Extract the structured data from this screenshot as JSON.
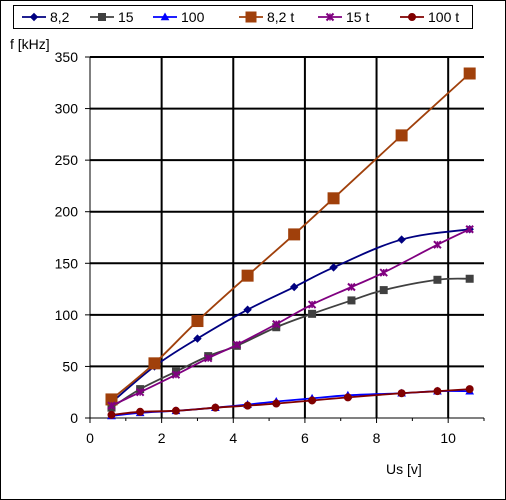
{
  "chart_data": {
    "type": "line",
    "title": "",
    "xlabel": "Us [v]",
    "ylabel": "f [kHz]",
    "xlim": [
      0,
      11
    ],
    "ylim": [
      0,
      350
    ],
    "x_ticks": [
      "0",
      "2",
      "4",
      "6",
      "8",
      "10"
    ],
    "y_ticks": [
      "0",
      "50",
      "100",
      "150",
      "200",
      "250",
      "300",
      "350"
    ],
    "grid": true,
    "legend_position": "top",
    "series": [
      {
        "name": "8,2",
        "color": "#000080",
        "marker": "diamond",
        "x": [
          0.6,
          1.8,
          3.0,
          4.4,
          5.7,
          6.8,
          8.7,
          10.6
        ],
        "y": [
          15,
          50,
          77,
          105,
          127,
          146,
          173,
          183
        ]
      },
      {
        "name": "15",
        "color": "#404040",
        "marker": "square",
        "x": [
          0.6,
          1.4,
          2.4,
          3.3,
          4.1,
          5.2,
          6.2,
          7.3,
          8.2,
          9.7,
          10.6
        ],
        "y": [
          10,
          28,
          45,
          60,
          70,
          88,
          101,
          114,
          124,
          134,
          135
        ]
      },
      {
        "name": "100",
        "color": "#0000ff",
        "marker": "triangle",
        "x": [
          0.6,
          1.4,
          2.4,
          3.5,
          4.4,
          5.2,
          6.2,
          7.2,
          8.7,
          9.7,
          10.6
        ],
        "y": [
          2,
          5,
          7,
          10,
          13,
          16,
          19,
          22,
          24,
          26,
          26
        ]
      },
      {
        "name": "8,2 t",
        "color": "#a0400b",
        "marker": "square",
        "x": [
          0.6,
          1.8,
          3.0,
          4.4,
          5.7,
          6.8,
          8.7,
          10.6
        ],
        "y": [
          18,
          53,
          94,
          138,
          178,
          213,
          274,
          334
        ]
      },
      {
        "name": "15 t",
        "color": "#800080",
        "marker": "x",
        "x": [
          0.6,
          1.4,
          2.4,
          3.3,
          4.1,
          5.2,
          6.2,
          7.3,
          8.2,
          9.7,
          10.6
        ],
        "y": [
          12,
          25,
          42,
          58,
          71,
          91,
          110,
          127,
          141,
          168,
          183
        ]
      },
      {
        "name": "100 t",
        "color": "#800000",
        "marker": "circle",
        "x": [
          0.6,
          1.4,
          2.4,
          3.5,
          4.4,
          5.2,
          6.2,
          7.2,
          8.7,
          9.7,
          10.6
        ],
        "y": [
          3,
          6,
          7,
          10,
          12,
          14,
          17,
          20,
          24,
          26,
          28
        ]
      }
    ]
  }
}
